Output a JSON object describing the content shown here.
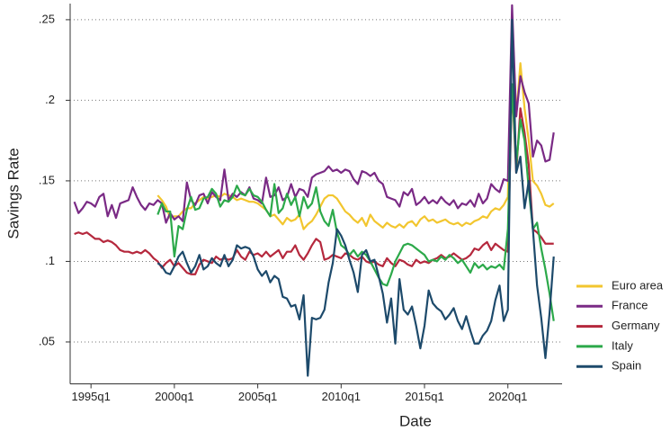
{
  "chart_data": {
    "type": "line",
    "xlabel": "Date",
    "ylabel": "Savings Rate",
    "x": [
      1994,
      1994.25,
      1994.5,
      1994.75,
      1995,
      1995.25,
      1995.5,
      1995.75,
      1996,
      1996.25,
      1996.5,
      1996.75,
      1997,
      1997.25,
      1997.5,
      1997.75,
      1998,
      1998.25,
      1998.5,
      1998.75,
      1999,
      1999.25,
      1999.5,
      1999.75,
      2000,
      2000.25,
      2000.5,
      2000.75,
      2001,
      2001.25,
      2001.5,
      2001.75,
      2002,
      2002.25,
      2002.5,
      2002.75,
      2003,
      2003.25,
      2003.5,
      2003.75,
      2004,
      2004.25,
      2004.5,
      2004.75,
      2005,
      2005.25,
      2005.5,
      2005.75,
      2006,
      2006.25,
      2006.5,
      2006.75,
      2007,
      2007.25,
      2007.5,
      2007.75,
      2008,
      2008.25,
      2008.5,
      2008.75,
      2009,
      2009.25,
      2009.5,
      2009.75,
      2010,
      2010.25,
      2010.5,
      2010.75,
      2011,
      2011.25,
      2011.5,
      2011.75,
      2012,
      2012.25,
      2012.5,
      2012.75,
      2013,
      2013.25,
      2013.5,
      2013.75,
      2014,
      2014.25,
      2014.5,
      2014.75,
      2015,
      2015.25,
      2015.5,
      2015.75,
      2016,
      2016.25,
      2016.5,
      2016.75,
      2017,
      2017.25,
      2017.5,
      2017.75,
      2018,
      2018.25,
      2018.5,
      2018.75,
      2019,
      2019.25,
      2019.5,
      2019.75,
      2020,
      2020.25,
      2020.5,
      2020.75,
      2021,
      2021.25,
      2021.5,
      2021.75,
      2022,
      2022.25,
      2022.5,
      2022.75
    ],
    "series": [
      {
        "name": "Euro area",
        "color": "#f2c62f",
        "values": [
          null,
          null,
          null,
          null,
          null,
          null,
          null,
          null,
          null,
          null,
          null,
          null,
          null,
          null,
          null,
          null,
          null,
          null,
          null,
          null,
          0.141,
          0.138,
          0.134,
          0.127,
          0.128,
          0.128,
          0.131,
          0.133,
          0.133,
          0.136,
          0.138,
          0.14,
          0.139,
          0.14,
          0.141,
          0.14,
          0.142,
          0.141,
          0.14,
          0.138,
          0.139,
          0.138,
          0.137,
          0.137,
          0.136,
          0.134,
          0.132,
          0.128,
          0.129,
          0.126,
          0.123,
          0.127,
          0.125,
          0.126,
          0.129,
          0.12,
          0.123,
          0.125,
          0.129,
          0.134,
          0.139,
          0.141,
          0.141,
          0.139,
          0.135,
          0.131,
          0.129,
          0.126,
          0.124,
          0.127,
          0.122,
          0.129,
          0.125,
          0.123,
          0.121,
          0.124,
          0.122,
          0.121,
          0.123,
          0.121,
          0.124,
          0.125,
          0.122,
          0.126,
          0.128,
          0.125,
          0.126,
          0.124,
          0.125,
          0.126,
          0.124,
          0.123,
          0.124,
          0.122,
          0.124,
          0.123,
          0.125,
          0.126,
          0.128,
          0.127,
          0.131,
          0.133,
          0.132,
          0.135,
          0.14,
          0.25,
          0.19,
          0.223,
          0.195,
          0.175,
          0.15,
          0.147,
          0.142,
          0.135,
          0.134,
          0.136
        ]
      },
      {
        "name": "France",
        "color": "#7a2a85",
        "values": [
          0.137,
          0.13,
          0.133,
          0.137,
          0.136,
          0.134,
          0.14,
          0.142,
          0.128,
          0.135,
          0.127,
          0.136,
          0.137,
          0.138,
          0.146,
          0.14,
          0.135,
          0.132,
          0.136,
          0.135,
          0.138,
          0.136,
          0.124,
          0.13,
          0.126,
          0.128,
          0.125,
          0.149,
          0.138,
          0.135,
          0.141,
          0.142,
          0.136,
          0.143,
          0.14,
          0.138,
          0.157,
          0.138,
          0.142,
          0.14,
          0.143,
          0.141,
          0.146,
          0.139,
          0.138,
          0.136,
          0.152,
          0.14,
          0.141,
          0.146,
          0.138,
          0.14,
          0.148,
          0.14,
          0.145,
          0.144,
          0.14,
          0.152,
          0.154,
          0.155,
          0.156,
          0.159,
          0.156,
          0.157,
          0.155,
          0.157,
          0.156,
          0.151,
          0.148,
          0.156,
          0.155,
          0.153,
          0.155,
          0.15,
          0.148,
          0.14,
          0.139,
          0.138,
          0.134,
          0.143,
          0.141,
          0.145,
          0.135,
          0.137,
          0.14,
          0.136,
          0.138,
          0.136,
          0.14,
          0.137,
          0.135,
          0.138,
          0.133,
          0.136,
          0.135,
          0.138,
          0.134,
          0.142,
          0.136,
          0.139,
          0.148,
          0.145,
          0.143,
          0.151,
          0.15,
          0.259,
          0.19,
          0.215,
          0.205,
          0.198,
          0.165,
          0.175,
          0.172,
          0.162,
          0.163,
          0.18
        ]
      },
      {
        "name": "Germany",
        "color": "#b5283d",
        "values": [
          0.117,
          0.118,
          0.117,
          0.118,
          0.116,
          0.114,
          0.114,
          0.112,
          0.113,
          0.112,
          0.11,
          0.107,
          0.106,
          0.106,
          0.105,
          0.106,
          0.105,
          0.107,
          0.105,
          0.102,
          0.1,
          0.096,
          0.099,
          0.101,
          0.097,
          0.099,
          0.096,
          0.093,
          0.092,
          0.092,
          0.098,
          0.101,
          0.1,
          0.099,
          0.103,
          0.101,
          0.102,
          0.101,
          0.102,
          0.107,
          0.103,
          0.101,
          0.106,
          0.104,
          0.105,
          0.103,
          0.106,
          0.103,
          0.105,
          0.107,
          0.102,
          0.106,
          0.106,
          0.11,
          0.104,
          0.101,
          0.105,
          0.11,
          0.114,
          0.112,
          0.101,
          0.102,
          0.104,
          0.103,
          0.102,
          0.105,
          0.104,
          0.102,
          0.101,
          0.103,
          0.1,
          0.099,
          0.1,
          0.098,
          0.097,
          0.102,
          0.099,
          0.097,
          0.101,
          0.1,
          0.098,
          0.097,
          0.101,
          0.099,
          0.1,
          0.099,
          0.101,
          0.102,
          0.104,
          0.102,
          0.103,
          0.105,
          0.103,
          0.101,
          0.102,
          0.104,
          0.108,
          0.107,
          0.11,
          0.112,
          0.107,
          0.111,
          0.109,
          0.107,
          0.106,
          0.21,
          0.155,
          0.195,
          0.18,
          0.16,
          0.12,
          0.118,
          0.115,
          0.111,
          0.111,
          0.111
        ]
      },
      {
        "name": "Italy",
        "color": "#2ca94a",
        "values": [
          null,
          null,
          null,
          null,
          null,
          null,
          null,
          null,
          null,
          null,
          null,
          null,
          null,
          null,
          null,
          null,
          null,
          null,
          null,
          null,
          0.129,
          0.136,
          0.131,
          0.131,
          0.103,
          0.122,
          0.12,
          0.132,
          0.14,
          0.132,
          0.133,
          0.139,
          0.14,
          0.145,
          0.142,
          0.134,
          0.138,
          0.137,
          0.14,
          0.147,
          0.142,
          0.141,
          0.145,
          0.141,
          0.14,
          0.137,
          0.132,
          0.128,
          0.148,
          0.13,
          0.133,
          0.142,
          0.135,
          0.14,
          0.128,
          0.14,
          0.133,
          0.136,
          0.146,
          0.131,
          0.125,
          0.122,
          0.132,
          0.118,
          0.11,
          0.108,
          0.104,
          0.107,
          0.103,
          0.106,
          0.104,
          0.1,
          0.095,
          0.09,
          0.086,
          0.085,
          0.092,
          0.1,
          0.105,
          0.11,
          0.111,
          0.11,
          0.108,
          0.106,
          0.104,
          0.1,
          0.101,
          0.1,
          0.103,
          0.101,
          0.104,
          0.102,
          0.099,
          0.101,
          0.097,
          0.093,
          0.099,
          0.096,
          0.098,
          0.095,
          0.097,
          0.096,
          0.098,
          0.095,
          0.12,
          0.21,
          0.16,
          0.188,
          0.175,
          0.145,
          0.12,
          0.124,
          0.108,
          0.095,
          0.08,
          0.063
        ]
      },
      {
        "name": "Spain",
        "color": "#1d4a6b",
        "values": [
          null,
          null,
          null,
          null,
          null,
          null,
          null,
          null,
          null,
          null,
          null,
          null,
          null,
          null,
          null,
          null,
          null,
          null,
          null,
          null,
          0.099,
          0.097,
          0.093,
          0.092,
          0.097,
          0.103,
          0.106,
          0.099,
          0.093,
          0.097,
          0.104,
          0.095,
          0.097,
          0.102,
          0.099,
          0.097,
          0.104,
          0.097,
          0.101,
          0.11,
          0.108,
          0.109,
          0.108,
          0.103,
          0.095,
          0.091,
          0.094,
          0.087,
          0.091,
          0.089,
          0.078,
          0.077,
          0.072,
          0.073,
          0.064,
          0.079,
          0.029,
          0.065,
          0.064,
          0.065,
          0.07,
          0.087,
          0.099,
          0.12,
          0.116,
          0.11,
          0.101,
          0.093,
          0.081,
          0.104,
          0.107,
          0.1,
          0.101,
          0.091,
          0.08,
          0.062,
          0.077,
          0.049,
          0.089,
          0.07,
          0.067,
          0.072,
          0.06,
          0.046,
          0.06,
          0.082,
          0.074,
          0.071,
          0.069,
          0.064,
          0.067,
          0.071,
          0.063,
          0.058,
          0.066,
          0.057,
          0.049,
          0.049,
          0.054,
          0.057,
          0.063,
          0.076,
          0.085,
          0.063,
          0.07,
          0.25,
          0.155,
          0.165,
          0.133,
          0.15,
          0.12,
          0.085,
          0.065,
          0.04,
          0.068,
          0.103
        ]
      }
    ],
    "xlim": [
      1993.75,
      2023.25
    ],
    "xticks": [
      {
        "value": 1995,
        "label": "1995q1"
      },
      {
        "value": 2000,
        "label": "2000q1"
      },
      {
        "value": 2005,
        "label": "2005q1"
      },
      {
        "value": 2010,
        "label": "2010q1"
      },
      {
        "value": 2015,
        "label": "2015q1"
      },
      {
        "value": 2020,
        "label": "2020q1"
      }
    ],
    "ylim": [
      0.024,
      0.26
    ],
    "yticks": [
      {
        "value": 0.05,
        "label": ".05"
      },
      {
        "value": 0.1,
        "label": ".1"
      },
      {
        "value": 0.15,
        "label": ".15"
      },
      {
        "value": 0.2,
        "label": ".2"
      },
      {
        "value": 0.25,
        "label": ".25"
      }
    ],
    "grid": true,
    "legend": "right"
  }
}
